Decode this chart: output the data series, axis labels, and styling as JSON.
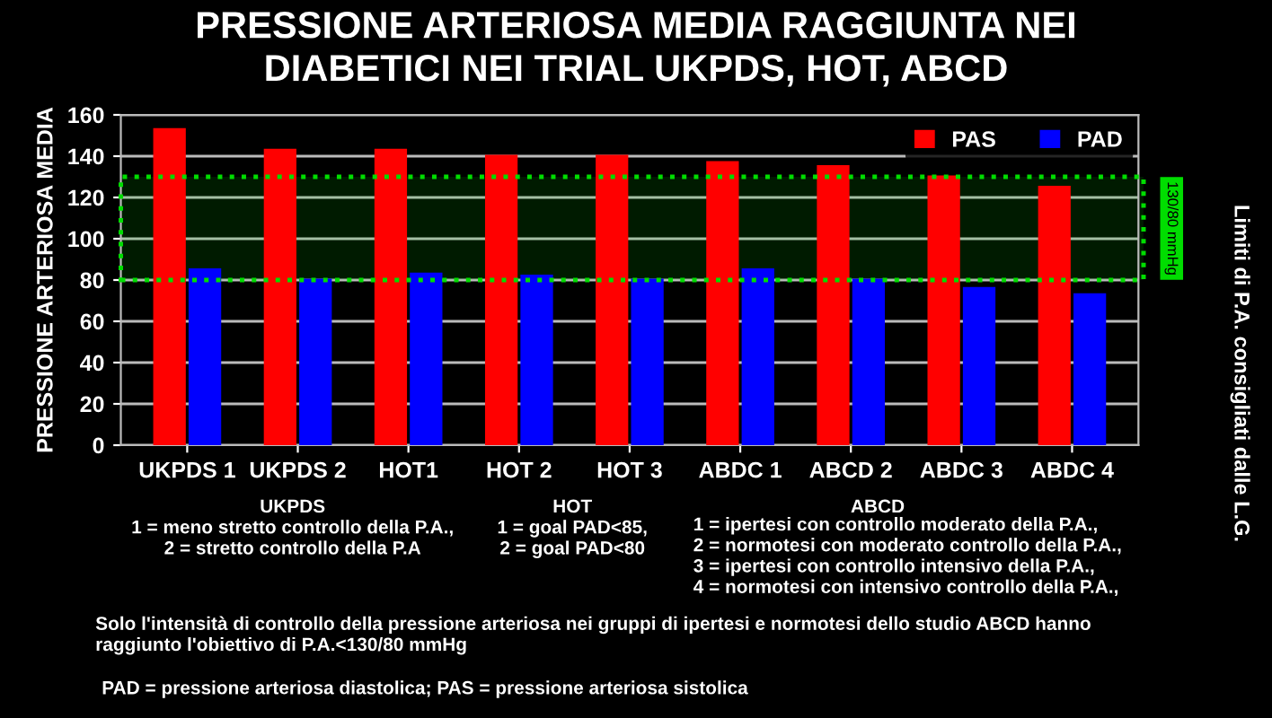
{
  "chart_data": {
    "type": "bar",
    "title": "PRESSIONE ARTERIOSA MEDIA RAGGIUNTA NEI\nDIABETICI NEI TRIAL UKPDS, HOT, ABCD",
    "ylabel": "PRESSIONE ARTERIOSA MEDIA",
    "categories": [
      "UKPDS 1",
      "UKPDS 2",
      "HOT1",
      "HOT 2",
      "HOT 3",
      "ABDC 1",
      "ABCD 2",
      "ABDC 3",
      "ABDC 4"
    ],
    "series": [
      {
        "name": "PAS",
        "color": "#ff0000",
        "values": [
          153,
          143,
          143,
          140,
          140,
          137,
          135,
          130,
          125
        ]
      },
      {
        "name": "PAD",
        "color": "#0000ff",
        "values": [
          85,
          80,
          83,
          82,
          80,
          85,
          80,
          76,
          73
        ]
      }
    ],
    "ylim": [
      0,
      160
    ],
    "yticks": [
      0,
      20,
      40,
      60,
      80,
      100,
      120,
      140,
      160
    ],
    "grid": "y",
    "legend": "top right",
    "bands": [
      {
        "axis": "y",
        "from": 80,
        "to": 130,
        "label": "130/80 mmHg",
        "color": "#00dd00"
      }
    ],
    "annotations": [
      "Limiti di P.A. consigliati dalle L.G.",
      "UKPDS\n1 = meno stretto controllo della P.A.,\n2 = stretto controllo della P.A",
      "HOT\n1 = goal PAD<85,\n2 = goal PAD<80",
      "ABCD\n1 = ipertesi con controllo moderato della P.A.,\n2 = normotesi con moderato controllo della P.A.,\n3 = ipertesi con controllo intensivo della P.A.,\n4 = normotesi con intensivo controllo della P.A.,",
      "Solo l'intensità di controllo della pressione arteriosa nei gruppi di ipertesi e normotesi dello studio ABCD hanno\nraggiunto l'obiettivo di P.A.<130/80 mmHg",
      "PAD = pressione arteriosa diastolica; PAS = pressione arteriosa sistolica"
    ]
  }
}
